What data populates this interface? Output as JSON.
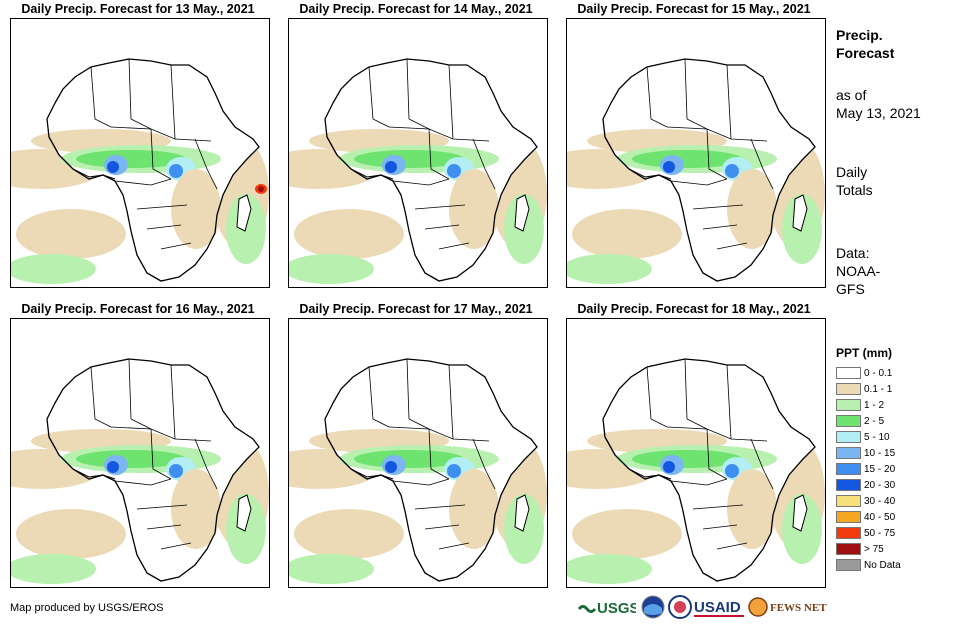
{
  "panels": [
    {
      "title": "Daily Precip. Forecast for 13 May., 2021"
    },
    {
      "title": "Daily Precip. Forecast for 14 May., 2021"
    },
    {
      "title": "Daily Precip. Forecast for 15 May., 2021"
    },
    {
      "title": "Daily Precip. Forecast for 16 May., 2021"
    },
    {
      "title": "Daily Precip. Forecast for 17 May., 2021"
    },
    {
      "title": "Daily Precip. Forecast for 18 May., 2021"
    }
  ],
  "side": {
    "title_line1": "Precip.",
    "title_line2": "Forecast",
    "asof_line1": "as of",
    "asof_line2": "May 13, 2021",
    "totals_line1": "Daily",
    "totals_line2": "Totals",
    "data_line1": "Data:",
    "data_line2": "NOAA-",
    "data_line3": "GFS"
  },
  "legend": {
    "title": "PPT (mm)",
    "items": [
      {
        "label": "0 - 0.1",
        "color": "#ffffff"
      },
      {
        "label": "0.1 - 1",
        "color": "#ecd9b6"
      },
      {
        "label": "1 - 2",
        "color": "#b8f0b0"
      },
      {
        "label": "2 - 5",
        "color": "#6fe36f"
      },
      {
        "label": "5 - 10",
        "color": "#b3eef5"
      },
      {
        "label": "10 - 15",
        "color": "#7bb6f2"
      },
      {
        "label": "15 - 20",
        "color": "#3f8ff0"
      },
      {
        "label": "20 - 30",
        "color": "#1456e0"
      },
      {
        "label": "30 - 40",
        "color": "#f7e07a"
      },
      {
        "label": "40 - 50",
        "color": "#f5a623"
      },
      {
        "label": "50 - 75",
        "color": "#f23a0c"
      },
      {
        "label": "> 75",
        "color": "#a01010"
      },
      {
        "label": "No Data",
        "color": "#9a9a9a"
      }
    ]
  },
  "credit": "Map produced by USGS/EROS",
  "logos": {
    "usgs": "USGS",
    "usaid": "USAID",
    "fewsnet": "FEWS NET"
  }
}
